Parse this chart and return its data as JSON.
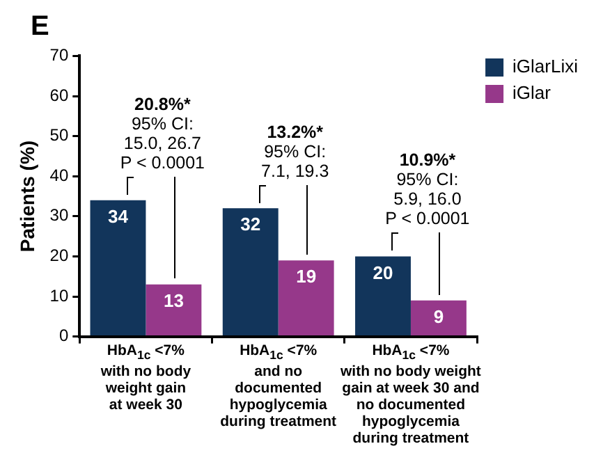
{
  "chart_data": {
    "type": "bar",
    "title": "E",
    "ylabel": "Patients (%)",
    "categories": [
      "HbA$_{1c}$ <7%\nwith no body\nweight gain\nat week 30",
      "HbA$_{1c}$ <7%\nand no\ndocumented\nhypoglycemia\nduring treatment",
      "HbA$_{1c}$ <7%\nwith no body weight\ngain at week 30 and\nno documented\nhypoglycemia\nduring treatment"
    ],
    "series": [
      {
        "name": "iGlarLixi",
        "color": "#12355b",
        "values": [
          34,
          32,
          20
        ]
      },
      {
        "name": "iGlar",
        "color": "#96388a",
        "values": [
          13,
          19,
          9
        ]
      }
    ],
    "ylim": [
      0,
      70
    ],
    "yticks": [
      0,
      10,
      20,
      30,
      40,
      50,
      60,
      70
    ],
    "grid": false,
    "legend": "top right",
    "data_labels": true,
    "annotations": [
      "20.8%*\n95% CI:\n15.0, 26.7\nP < 0.0001",
      "13.2%*\n95% CI:\n7.1, 19.3",
      "10.9%*\n95% CI:\n5.9, 16.0\nP < 0.0001"
    ]
  }
}
